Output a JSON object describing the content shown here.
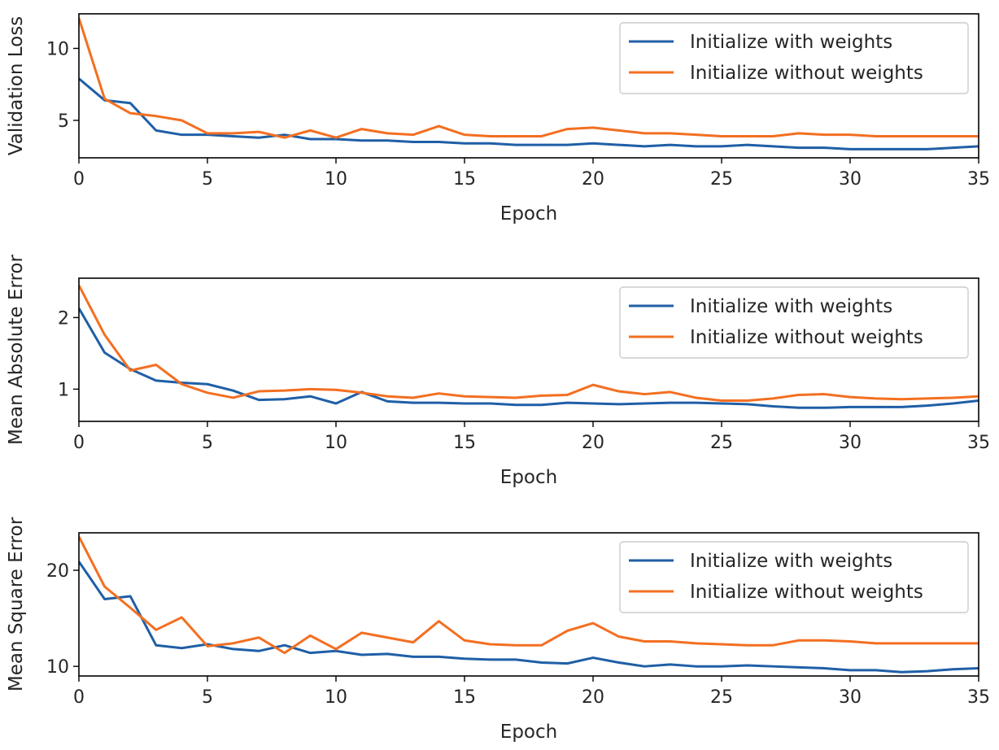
{
  "chart_data": [
    {
      "type": "line",
      "ylabel": "Validation Loss",
      "xlabel": "Epoch",
      "xlim": [
        0,
        35
      ],
      "ylim": [
        2.4,
        12.4
      ],
      "xticks": [
        0,
        5,
        10,
        15,
        20,
        25,
        30,
        35
      ],
      "yticks": [
        5,
        10
      ],
      "legend_position": "top-right",
      "series": [
        {
          "name": "Initialize with weights",
          "color": "#1f5fa6",
          "x": [
            0,
            1,
            2,
            3,
            4,
            5,
            6,
            7,
            8,
            9,
            10,
            11,
            12,
            13,
            14,
            15,
            16,
            17,
            18,
            19,
            20,
            21,
            22,
            23,
            24,
            25,
            26,
            27,
            28,
            29,
            30,
            31,
            32,
            33,
            34,
            35
          ],
          "values": [
            7.9,
            6.4,
            6.2,
            4.3,
            4.0,
            4.0,
            3.9,
            3.8,
            4.0,
            3.7,
            3.7,
            3.6,
            3.6,
            3.5,
            3.5,
            3.4,
            3.4,
            3.3,
            3.3,
            3.3,
            3.4,
            3.3,
            3.2,
            3.3,
            3.2,
            3.2,
            3.3,
            3.2,
            3.1,
            3.1,
            3.0,
            3.0,
            3.0,
            3.0,
            3.1,
            3.2
          ]
        },
        {
          "name": "Initialize without weights",
          "color": "#f36f21",
          "x": [
            0,
            1,
            2,
            3,
            4,
            5,
            6,
            7,
            8,
            9,
            10,
            11,
            12,
            13,
            14,
            15,
            16,
            17,
            18,
            19,
            20,
            21,
            22,
            23,
            24,
            25,
            26,
            27,
            28,
            29,
            30,
            31,
            32,
            33,
            34,
            35
          ],
          "values": [
            12.1,
            6.5,
            5.5,
            5.3,
            5.0,
            4.1,
            4.1,
            4.2,
            3.8,
            4.3,
            3.8,
            4.4,
            4.1,
            4.0,
            4.6,
            4.0,
            3.9,
            3.9,
            3.9,
            4.4,
            4.5,
            4.3,
            4.1,
            4.1,
            4.0,
            3.9,
            3.9,
            3.9,
            4.1,
            4.0,
            4.0,
            3.9,
            3.9,
            3.9,
            3.9,
            3.9
          ]
        }
      ]
    },
    {
      "type": "line",
      "ylabel": "Mean Absolute Error",
      "xlabel": "Epoch",
      "xlim": [
        0,
        35
      ],
      "ylim": [
        0.55,
        2.55
      ],
      "xticks": [
        0,
        5,
        10,
        15,
        20,
        25,
        30,
        35
      ],
      "yticks": [
        1,
        2
      ],
      "legend_position": "top-right",
      "series": [
        {
          "name": "Initialize with weights",
          "color": "#1f5fa6",
          "x": [
            0,
            1,
            2,
            3,
            4,
            5,
            6,
            7,
            8,
            9,
            10,
            11,
            12,
            13,
            14,
            15,
            16,
            17,
            18,
            19,
            20,
            21,
            22,
            23,
            24,
            25,
            26,
            27,
            28,
            29,
            30,
            31,
            32,
            33,
            34,
            35
          ],
          "values": [
            2.13,
            1.51,
            1.28,
            1.12,
            1.09,
            1.07,
            0.98,
            0.85,
            0.86,
            0.9,
            0.8,
            0.96,
            0.83,
            0.81,
            0.81,
            0.8,
            0.8,
            0.78,
            0.78,
            0.81,
            0.8,
            0.79,
            0.8,
            0.81,
            0.81,
            0.8,
            0.79,
            0.76,
            0.74,
            0.74,
            0.75,
            0.75,
            0.75,
            0.77,
            0.8,
            0.84
          ]
        },
        {
          "name": "Initialize without weights",
          "color": "#f36f21",
          "x": [
            0,
            1,
            2,
            3,
            4,
            5,
            6,
            7,
            8,
            9,
            10,
            11,
            12,
            13,
            14,
            15,
            16,
            17,
            18,
            19,
            20,
            21,
            22,
            23,
            24,
            25,
            26,
            27,
            28,
            29,
            30,
            31,
            32,
            33,
            34,
            35
          ],
          "values": [
            2.45,
            1.76,
            1.26,
            1.34,
            1.07,
            0.95,
            0.88,
            0.97,
            0.98,
            1.0,
            0.99,
            0.95,
            0.9,
            0.88,
            0.94,
            0.9,
            0.89,
            0.88,
            0.91,
            0.92,
            1.06,
            0.97,
            0.93,
            0.96,
            0.88,
            0.84,
            0.84,
            0.87,
            0.92,
            0.93,
            0.89,
            0.87,
            0.86,
            0.87,
            0.88,
            0.9
          ]
        }
      ]
    },
    {
      "type": "line",
      "ylabel": "Mean Square Error",
      "xlabel": "Epoch",
      "xlim": [
        0,
        35
      ],
      "ylim": [
        9.0,
        23.9
      ],
      "xticks": [
        0,
        5,
        10,
        15,
        20,
        25,
        30,
        35
      ],
      "yticks": [
        10,
        20
      ],
      "legend_position": "top-right",
      "series": [
        {
          "name": "Initialize with weights",
          "color": "#1f5fa6",
          "x": [
            0,
            1,
            2,
            3,
            4,
            5,
            6,
            7,
            8,
            9,
            10,
            11,
            12,
            13,
            14,
            15,
            16,
            17,
            18,
            19,
            20,
            21,
            22,
            23,
            24,
            25,
            26,
            27,
            28,
            29,
            30,
            31,
            32,
            33,
            34,
            35
          ],
          "values": [
            20.9,
            17.0,
            17.3,
            12.2,
            11.9,
            12.3,
            11.8,
            11.6,
            12.2,
            11.4,
            11.6,
            11.2,
            11.3,
            11.0,
            11.0,
            10.8,
            10.7,
            10.7,
            10.4,
            10.3,
            10.9,
            10.4,
            10.0,
            10.2,
            10.0,
            10.0,
            10.1,
            10.0,
            9.9,
            9.8,
            9.6,
            9.6,
            9.4,
            9.5,
            9.7,
            9.8
          ]
        },
        {
          "name": "Initialize without weights",
          "color": "#f36f21",
          "x": [
            0,
            1,
            2,
            3,
            4,
            5,
            6,
            7,
            8,
            9,
            10,
            11,
            12,
            13,
            14,
            15,
            16,
            17,
            18,
            19,
            20,
            21,
            22,
            23,
            24,
            25,
            26,
            27,
            28,
            29,
            30,
            31,
            32,
            33,
            34,
            35
          ],
          "values": [
            23.5,
            18.3,
            16.1,
            13.8,
            15.1,
            12.1,
            12.4,
            13.0,
            11.4,
            13.2,
            11.8,
            13.5,
            13.0,
            12.5,
            14.7,
            12.7,
            12.3,
            12.2,
            12.2,
            13.7,
            14.5,
            13.1,
            12.6,
            12.6,
            12.4,
            12.3,
            12.2,
            12.2,
            12.7,
            12.7,
            12.6,
            12.4,
            12.4,
            12.4,
            12.4,
            12.4
          ]
        }
      ]
    }
  ]
}
